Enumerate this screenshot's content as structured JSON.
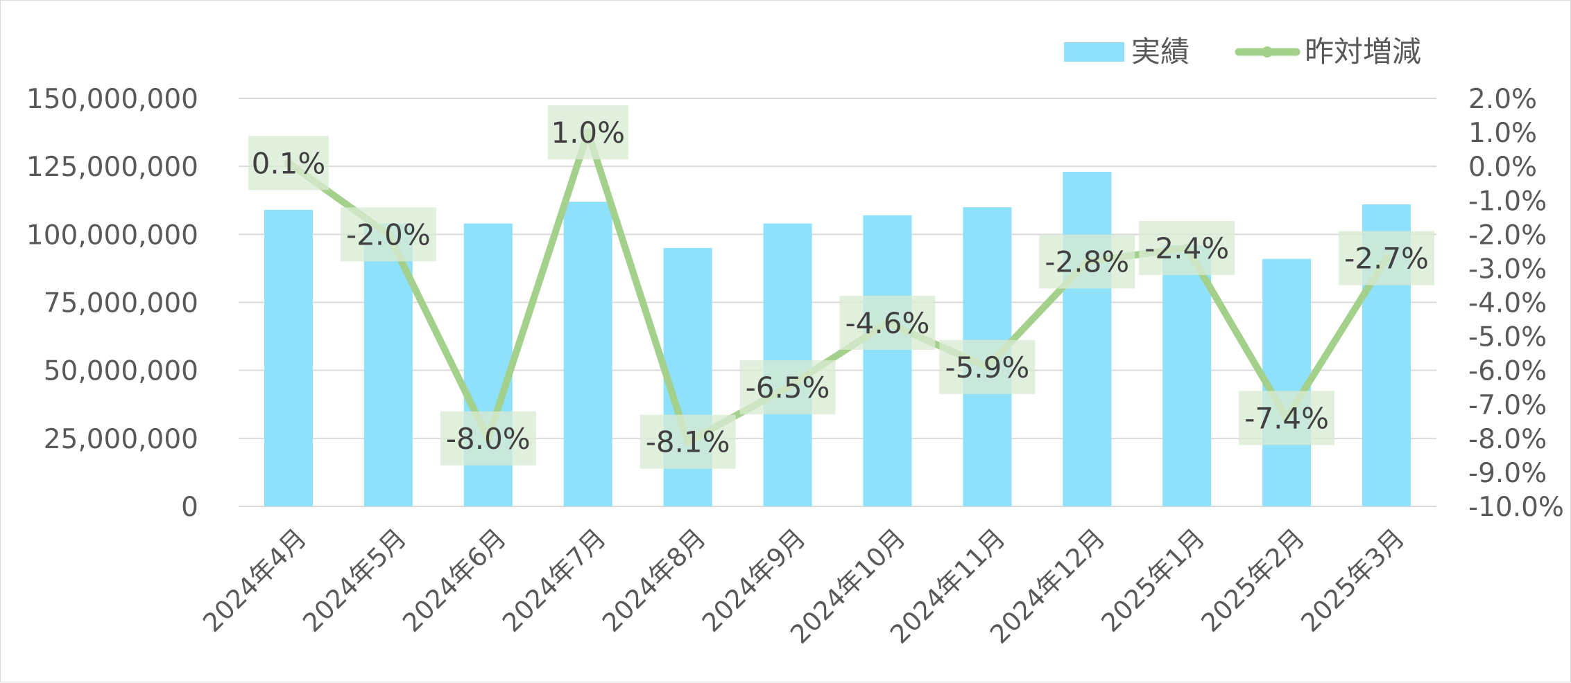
{
  "chart_data": {
    "type": "bar",
    "categories": [
      "2024年4月",
      "2024年5月",
      "2024年6月",
      "2024年7月",
      "2024年8月",
      "2024年9月",
      "2024年10月",
      "2024年11月",
      "2024年12月",
      "2025年1月",
      "2025年2月",
      "2025年3月"
    ],
    "series": [
      {
        "name": "実績",
        "type": "bar",
        "axis": "left",
        "color": "#8ee0fb",
        "values": [
          109000000,
          104000000,
          104000000,
          112000000,
          95000000,
          104000000,
          107000000,
          110000000,
          123000000,
          96000000,
          91000000,
          111000000
        ]
      },
      {
        "name": "昨対増減",
        "type": "line",
        "axis": "right",
        "color": "#a3d08a",
        "values": [
          0.1,
          -2.0,
          -8.0,
          1.0,
          -8.1,
          -6.5,
          -4.6,
          -5.9,
          -2.8,
          -2.4,
          -7.4,
          -2.7
        ],
        "labels": [
          "0.1%",
          "-2.0%",
          "-8.0%",
          "1.0%",
          "-8.1%",
          "-6.5%",
          "-4.6%",
          "-5.9%",
          "-2.8%",
          "-2.4%",
          "-7.4%",
          "-2.7%"
        ],
        "label_bg": "#d9ead3"
      }
    ],
    "y_left": {
      "ylim": [
        0,
        150000000
      ],
      "ticks": [
        "0",
        "25,000,000",
        "50,000,000",
        "75,000,000",
        "100,000,000",
        "125,000,000",
        "150,000,000"
      ]
    },
    "y_right": {
      "ylim": [
        -10.0,
        2.0
      ],
      "ticks": [
        "-10.0%",
        "-9.0%",
        "-8.0%",
        "-7.0%",
        "-6.0%",
        "-5.0%",
        "-4.0%",
        "-3.0%",
        "-2.0%",
        "-1.0%",
        "0.0%",
        "1.0%",
        "2.0%"
      ]
    },
    "grid": true,
    "legend": {
      "position": "top-right",
      "entries": [
        "実績",
        "昨対増減"
      ]
    },
    "title": "",
    "xlabel": "",
    "ylabel": ""
  },
  "colors": {
    "gridline": "#d9d9d9",
    "axis_text": "#595959"
  }
}
